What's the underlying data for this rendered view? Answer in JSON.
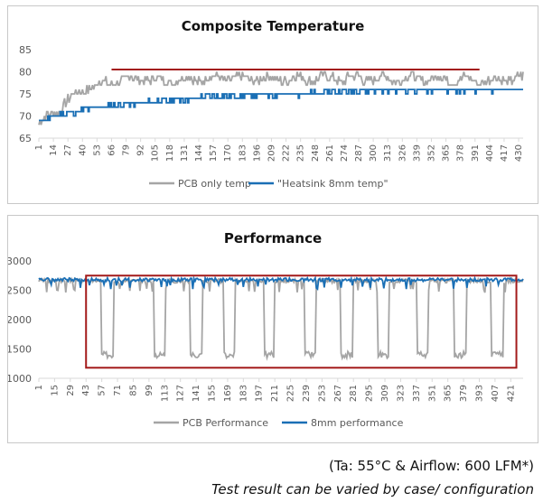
{
  "colors": {
    "gray": "#a5a5a5",
    "blue": "#1a6fb5",
    "highlight": "#a31a1a",
    "axis": "#d9d9d9"
  },
  "caption": {
    "conditions": "(Ta: 55°C & Airflow: 600 LFM*)",
    "note": "Test result can be varied by case/ configuration"
  },
  "chart_data": [
    {
      "type": "line",
      "title": "Composite Temperature",
      "ylim": [
        65,
        85
      ],
      "yticks": [
        65,
        70,
        75,
        80,
        85
      ],
      "n_points": 434,
      "x_tick_labels": [
        "1",
        "14",
        "27",
        "40",
        "53",
        "66",
        "79",
        "92",
        "105",
        "118",
        "131",
        "144",
        "157",
        "170",
        "183",
        "196",
        "209",
        "222",
        "235",
        "248",
        "261",
        "274",
        "287",
        "300",
        "313",
        "326",
        "339",
        "352",
        "365",
        "378",
        "391",
        "404",
        "417",
        "430"
      ],
      "series": [
        {
          "name": "PCB only temp",
          "color": "#a5a5a5",
          "style": "noisy",
          "control_x": [
            1,
            10,
            20,
            30,
            40,
            55,
            70,
            90,
            110,
            150,
            200,
            250,
            300,
            350,
            400,
            430
          ],
          "control_y": [
            68,
            70,
            72,
            74,
            76,
            77,
            78,
            78.5,
            78,
            78.5,
            78.5,
            78.5,
            78.5,
            78.5,
            78,
            78.5
          ]
        },
        {
          "name": "\"Heatsink 8mm temp\"",
          "color": "#1a6fb5",
          "style": "step",
          "control_x": [
            1,
            8,
            25,
            45,
            70,
            100,
            130,
            160,
            200,
            240,
            260,
            300,
            430
          ],
          "control_y": [
            68.5,
            69.5,
            70.5,
            71.5,
            72.5,
            73.2,
            73.8,
            74.5,
            74.8,
            75,
            75.5,
            75.8,
            76
          ]
        }
      ],
      "annotation": {
        "type": "line",
        "x": [
          66,
          395
        ],
        "y": 80.5,
        "color": "#a31a1a"
      }
    },
    {
      "type": "line",
      "title": "Performance",
      "ylim": [
        1000,
        3000
      ],
      "yticks": [
        1000,
        1500,
        2000,
        2500,
        3000
      ],
      "n_points": 432,
      "x_tick_labels": [
        "1",
        "15",
        "29",
        "43",
        "57",
        "71",
        "85",
        "99",
        "113",
        "127",
        "141",
        "155",
        "169",
        "183",
        "197",
        "211",
        "225",
        "239",
        "253",
        "267",
        "281",
        "295",
        "309",
        "323",
        "337",
        "351",
        "365",
        "379",
        "393",
        "407",
        "421"
      ],
      "series": [
        {
          "name": "PCB Performance",
          "color": "#a5a5a5",
          "high": 2660,
          "low": 1400,
          "drops": [
            [
              57,
              67
            ],
            [
              104,
              113
            ],
            [
              136,
              146
            ],
            [
              166,
              175
            ],
            [
              202,
              210
            ],
            [
              238,
              247
            ],
            [
              270,
              280
            ],
            [
              303,
              312
            ],
            [
              338,
              347
            ],
            [
              371,
              381
            ],
            [
              404,
              414
            ]
          ]
        },
        {
          "name": "8mm performance",
          "color": "#1a6fb5",
          "level": 2680
        }
      ],
      "annotation": {
        "type": "box",
        "x": [
          43,
          426
        ],
        "y": [
          1180,
          2750
        ],
        "color": "#a31a1a"
      }
    }
  ]
}
